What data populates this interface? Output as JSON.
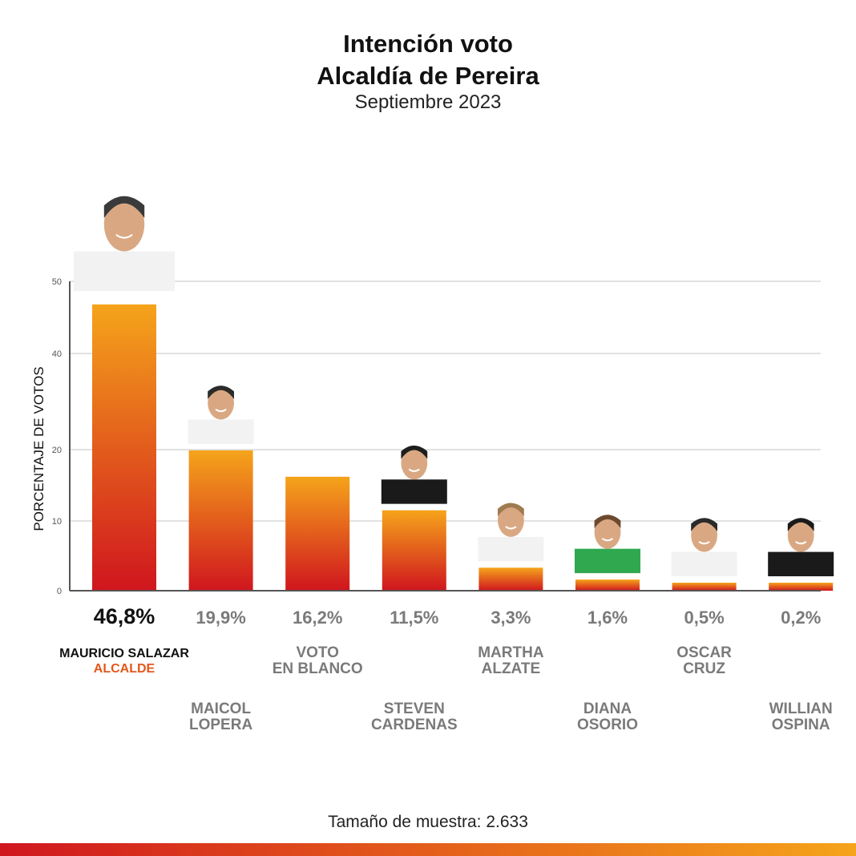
{
  "header": {
    "title_line1": "Intención voto",
    "title_line2": "Alcaldía de Pereira",
    "subtitle": "Septiembre 2023"
  },
  "footer": {
    "sample_size": "Tamaño de muestra: 2.633"
  },
  "colors": {
    "bar_top": "#f5a41b",
    "bar_bottom": "#d0161e",
    "grid": "#d9d9d9",
    "axis": "#555555",
    "value_highlight": "#111111",
    "value_normal": "#7a7a7a",
    "label_normal": "#7a7a7a",
    "brand_accent": "#e2571b"
  },
  "chart_data": {
    "type": "bar",
    "title": "Intención voto Alcaldía de Pereira",
    "subtitle": "Septiembre 2023",
    "xlabel": "",
    "ylabel": "PORCENTAJE DE VOTOS",
    "yticks": [
      0,
      10,
      20,
      40,
      50
    ],
    "ylim": [
      0,
      50
    ],
    "grid": true,
    "categories": [
      "MAURICIO SALAZAR",
      "MAICOL LOPERA",
      "VOTO EN BLANCO",
      "STEVEN CARDENAS",
      "MARTHA ALZATE",
      "DIANA OSORIO",
      "OSCAR CRUZ",
      "WILLIAN OSPINA"
    ],
    "values": [
      46.8,
      19.9,
      16.2,
      11.5,
      3.3,
      1.6,
      0.5,
      0.2
    ],
    "value_labels": [
      "46,8%",
      "19,9%",
      "16,2%",
      "11,5%",
      "3,3%",
      "1,6%",
      "0,5%",
      "0,2%"
    ],
    "name_labels": [
      {
        "line1": "MAURICIO SALAZAR",
        "line2": "ALCALDE",
        "highlight": true
      },
      {
        "line1": "MAICOL",
        "line2": "LOPERA"
      },
      {
        "line1": "VOTO",
        "line2": "EN BLANCO"
      },
      {
        "line1": "STEVEN",
        "line2": "CARDENAS"
      },
      {
        "line1": "MARTHA",
        "line2": "ALZATE"
      },
      {
        "line1": "DIANA",
        "line2": "OSORIO"
      },
      {
        "line1": "OSCAR",
        "line2": "CRUZ"
      },
      {
        "line1": "WILLIAN",
        "line2": "OSPINA"
      }
    ],
    "has_photo": [
      true,
      true,
      false,
      true,
      true,
      true,
      true,
      true
    ],
    "photo_clothing": [
      "#f2f2f2",
      "#f2f2f2",
      null,
      "#1a1a1a",
      "#f2f2f2",
      "#2fa84f",
      "#f2f2f2",
      "#1a1a1a"
    ],
    "photo_hair": [
      "#3a3a3a",
      "#2b2b2b",
      null,
      "#1e1e1e",
      "#a07a50",
      "#6b4a2e",
      "#2a2a2a",
      "#1a1a1a"
    ]
  }
}
